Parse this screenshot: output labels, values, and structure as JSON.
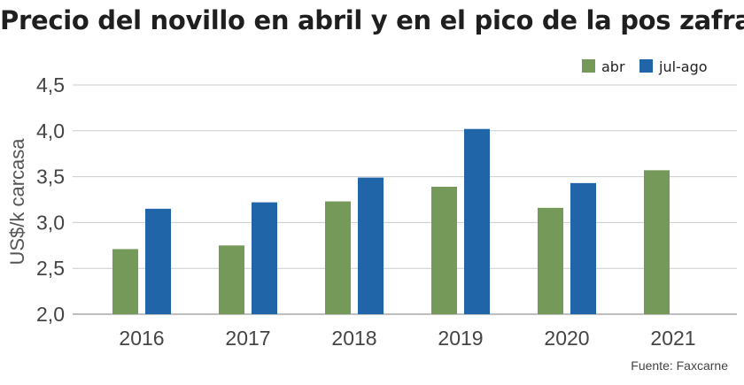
{
  "title": "Precio del novillo en abril y en el pico de la pos zafra",
  "source": "Fuente: Faxcarne",
  "colors": {
    "abr": "#759959",
    "jul_ago": "#2165a9",
    "grid": "#cccccc",
    "axis": "#999999"
  },
  "chart_data": {
    "type": "bar",
    "title": "Precio del novillo en abril y en el pico de la pos zafra",
    "xlabel": "",
    "ylabel": "US$/k carcasa",
    "categories": [
      "2016",
      "2017",
      "2018",
      "2019",
      "2020",
      "2021"
    ],
    "series": [
      {
        "name": "abr",
        "values": [
          2.71,
          2.75,
          3.23,
          3.39,
          3.16,
          3.57
        ]
      },
      {
        "name": "jul-ago",
        "values": [
          3.15,
          3.22,
          3.49,
          4.02,
          3.43,
          null
        ]
      }
    ],
    "ylim": [
      2.0,
      4.5
    ],
    "yticks": [
      2.0,
      2.5,
      3.0,
      3.5,
      4.0,
      4.5
    ],
    "ytick_labels": [
      "2,0",
      "2,5",
      "3,0",
      "3,5",
      "4,0",
      "4,5"
    ],
    "grid": true,
    "legend_position": "top-right"
  }
}
